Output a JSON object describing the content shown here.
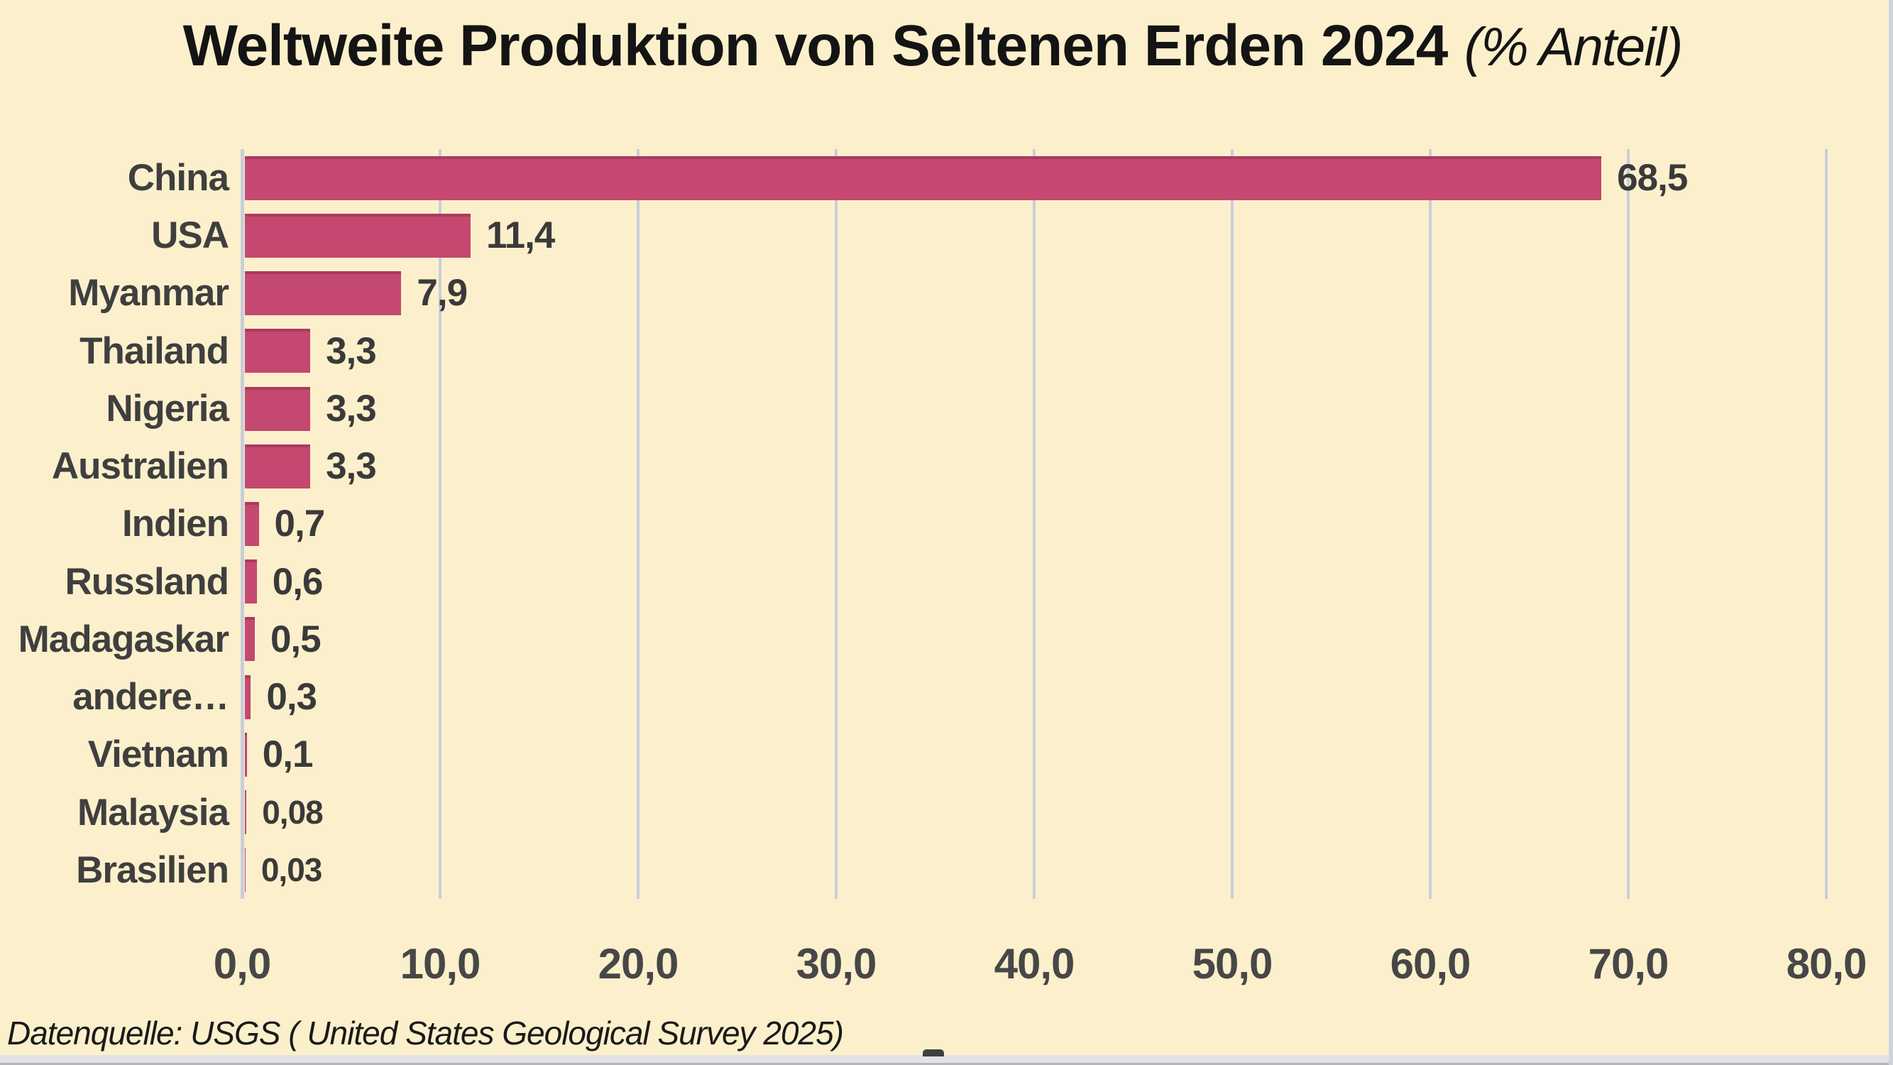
{
  "title": {
    "main": "Weltweite Produktion von Seltenen Erden 2024",
    "suffix": "(% Anteil)"
  },
  "source": {
    "text": "Datenquelle: USGS ( United States Geological Survey 2025)"
  },
  "colors": {
    "background": "#FCF0CC",
    "bar": "#C4486F",
    "bar_top": "#A93A60",
    "grid": "#C9CEDA",
    "label_text": "#3F3F3F",
    "value_text": "#3A3A3A",
    "tick_text": "#474747",
    "title_text": "#141414",
    "source_text": "#1A1A1A",
    "scrollbar_track": "#E3E3E5",
    "scrollbar_edge": "#B4B5B9",
    "scrollbar_vtrack": "#CFD3DB",
    "scroll_thumb": "#3F3F3F"
  },
  "chart_data": {
    "type": "bar",
    "orientation": "horizontal",
    "title": "Weltweite Produktion von Seltenen Erden 2024 (% Anteil)",
    "categories": [
      "China",
      "USA",
      "Myanmar",
      "Thailand",
      "Nigeria",
      "Australien",
      "Indien",
      "Russland",
      "Madagaskar",
      "andere…",
      "Vietnam",
      "Malaysia",
      "Brasilien"
    ],
    "values": [
      68.5,
      11.4,
      7.9,
      3.3,
      3.3,
      3.3,
      0.7,
      0.6,
      0.5,
      0.3,
      0.1,
      0.08,
      0.03
    ],
    "value_labels": [
      "68,5",
      "11,4",
      "7,9",
      "3,3",
      "3,3",
      "3,3",
      "0,7",
      "0,6",
      "0,5",
      "0,3",
      "0,1",
      "0,08",
      "0,03"
    ],
    "xlabel": "",
    "ylabel": "",
    "xlim": [
      0,
      80
    ],
    "x_ticks": [
      0,
      10,
      20,
      30,
      40,
      50,
      60,
      70,
      80
    ],
    "x_tick_labels": [
      "0,0",
      "10,0",
      "20,0",
      "30,0",
      "40,0",
      "50,0",
      "60,0",
      "70,0",
      "80,0"
    ],
    "grid": "vertical-gridlines",
    "legend": false
  }
}
